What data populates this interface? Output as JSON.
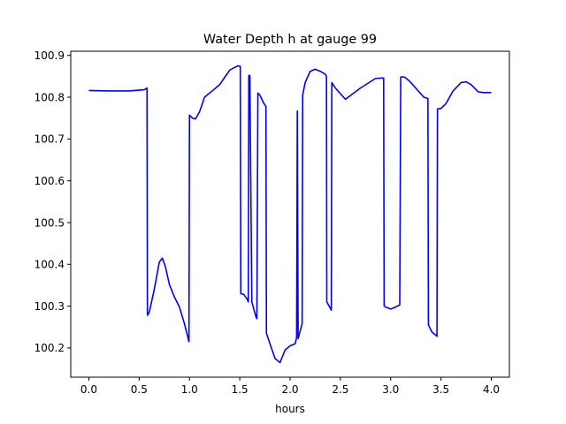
{
  "chart_data": {
    "type": "line",
    "title": "Water Depth h at gauge 99",
    "xlabel": "hours",
    "ylabel": "",
    "xlim": [
      -0.18,
      4.18
    ],
    "ylim": [
      100.13,
      100.91
    ],
    "xticks": [
      0.0,
      0.5,
      1.0,
      1.5,
      2.0,
      2.5,
      3.0,
      3.5,
      4.0
    ],
    "xtick_labels": [
      "0.0",
      "0.5",
      "1.0",
      "1.5",
      "2.0",
      "2.5",
      "3.0",
      "3.5",
      "4.0"
    ],
    "yticks": [
      100.2,
      100.3,
      100.4,
      100.5,
      100.6,
      100.7,
      100.8,
      100.9
    ],
    "ytick_labels": [
      "100.2",
      "100.3",
      "100.4",
      "100.5",
      "100.6",
      "100.7",
      "100.8",
      "100.9"
    ],
    "grid": false,
    "color": "#0000ff",
    "series": [
      {
        "x": [
          0.0,
          0.2,
          0.4,
          0.55,
          0.578,
          0.582,
          0.6,
          0.65,
          0.7,
          0.73,
          0.76,
          0.8,
          0.85,
          0.9,
          0.95,
          0.995,
          1.0,
          1.03,
          1.06,
          1.1,
          1.15,
          1.2,
          1.3,
          1.4,
          1.48,
          1.505,
          1.51,
          1.54,
          1.57,
          1.585,
          1.59,
          1.6,
          1.62,
          1.66,
          1.67,
          1.68,
          1.7,
          1.74,
          1.76,
          1.765,
          1.8,
          1.85,
          1.9,
          1.95,
          2.0,
          2.05,
          2.065,
          2.072,
          2.08,
          2.1,
          2.12,
          2.125,
          2.15,
          2.2,
          2.25,
          2.3,
          2.35,
          2.362,
          2.365,
          2.4,
          2.41,
          2.415,
          2.45,
          2.55,
          2.7,
          2.85,
          2.92,
          2.93,
          2.935,
          2.96,
          3.0,
          3.04,
          3.09,
          3.1,
          3.11,
          3.14,
          3.18,
          3.22,
          3.27,
          3.33,
          3.37,
          3.375,
          3.41,
          3.46,
          3.465,
          3.5,
          3.55,
          3.62,
          3.7,
          3.75,
          3.8,
          3.87,
          3.92,
          4.0
        ],
        "y": [
          100.816,
          100.815,
          100.815,
          100.818,
          100.822,
          100.278,
          100.285,
          100.34,
          100.405,
          100.415,
          100.395,
          100.352,
          100.322,
          100.298,
          100.258,
          100.215,
          100.757,
          100.75,
          100.748,
          100.765,
          100.8,
          100.81,
          100.83,
          100.865,
          100.875,
          100.874,
          100.33,
          100.328,
          100.318,
          100.31,
          100.852,
          100.852,
          100.31,
          100.275,
          100.27,
          100.81,
          100.805,
          100.785,
          100.778,
          100.235,
          100.21,
          100.175,
          100.165,
          100.195,
          100.205,
          100.21,
          100.225,
          100.767,
          100.222,
          100.24,
          100.258,
          100.805,
          100.835,
          100.862,
          100.867,
          100.862,
          100.855,
          100.85,
          100.31,
          100.295,
          100.29,
          100.835,
          100.822,
          100.795,
          100.822,
          100.845,
          100.846,
          100.846,
          100.3,
          100.297,
          100.293,
          100.297,
          100.303,
          100.848,
          100.849,
          100.848,
          100.84,
          100.83,
          100.816,
          100.8,
          100.797,
          100.255,
          100.238,
          100.228,
          100.772,
          100.773,
          100.785,
          100.815,
          100.835,
          100.837,
          100.83,
          100.813,
          100.811,
          100.811
        ]
      }
    ]
  }
}
